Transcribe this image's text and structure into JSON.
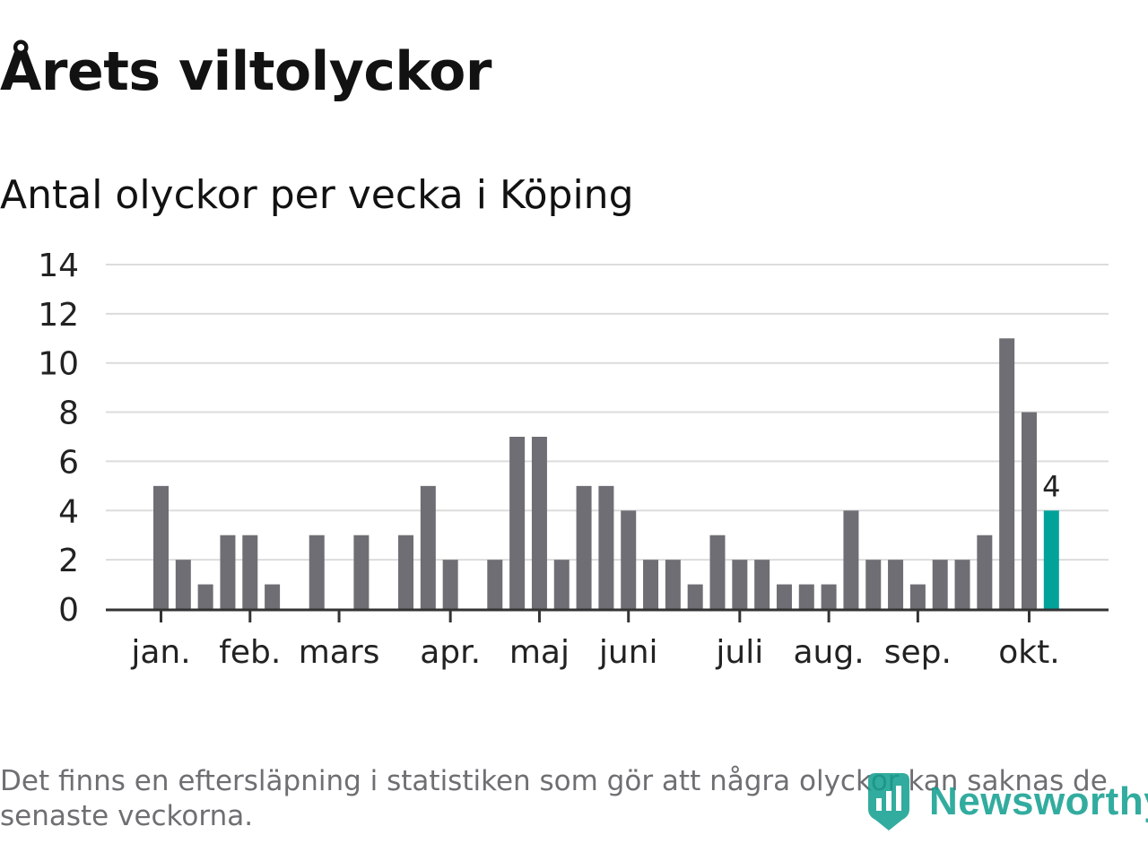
{
  "header": {
    "title": "Årets viltolyckor",
    "subtitle": "Antal olyckor per vecka i Köping"
  },
  "footer": {
    "note": "Det finns en eftersläpning i statistiken som gör att några olyckor kan saknas de senaste veckorna.",
    "brand": "Newsworthy",
    "brand_icon": "newsworthy-logo-icon"
  },
  "colors": {
    "bar": "#6f6e74",
    "highlight": "#00a29a",
    "grid": "#dcdcdc",
    "axis": "#333333",
    "text": "#121212",
    "note": "#6f6f73",
    "brand": "#0f9e8f"
  },
  "chart_data": {
    "type": "bar",
    "title": "Antal olyckor per vecka i Köping",
    "xlabel": "",
    "ylabel": "",
    "ylim": [
      0,
      14
    ],
    "yticks": [
      0,
      2,
      4,
      6,
      8,
      10,
      12,
      14
    ],
    "grid": true,
    "values": [
      5,
      2,
      1,
      3,
      3,
      1,
      0,
      3,
      0,
      3,
      0,
      3,
      5,
      2,
      0,
      2,
      7,
      7,
      2,
      5,
      5,
      4,
      2,
      2,
      1,
      3,
      2,
      2,
      1,
      1,
      1,
      4,
      2,
      2,
      1,
      2,
      2,
      3,
      11,
      8,
      4
    ],
    "highlight_index": 40,
    "highlight_label": "4",
    "month_ticks": [
      {
        "label": "jan.",
        "week_index": 0
      },
      {
        "label": "feb.",
        "week_index": 4
      },
      {
        "label": "mars",
        "week_index": 8
      },
      {
        "label": "apr.",
        "week_index": 13
      },
      {
        "label": "maj",
        "week_index": 17
      },
      {
        "label": "juni",
        "week_index": 21
      },
      {
        "label": "juli",
        "week_index": 26
      },
      {
        "label": "aug.",
        "week_index": 30
      },
      {
        "label": "sep.",
        "week_index": 34
      },
      {
        "label": "okt.",
        "week_index": 39
      }
    ]
  }
}
